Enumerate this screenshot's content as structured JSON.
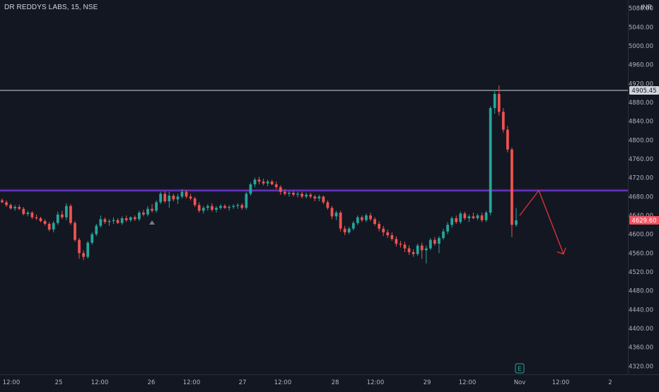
{
  "chart_data": {
    "type": "candlestick",
    "title": "DR REDDYS LABS, 15, NSE",
    "currency": "INR",
    "y_axis": {
      "min": 4300,
      "max": 5100,
      "ticks": [
        5080.0,
        5040.0,
        5000.0,
        4960.0,
        4920.0,
        4880.0,
        4840.0,
        4800.0,
        4760.0,
        4720.0,
        4680.0,
        4640.0,
        4600.0,
        4560.0,
        4520.0,
        4480.0,
        4440.0,
        4400.0,
        4360.0,
        4320.0
      ],
      "tick_labels": [
        "5080.00",
        "5040.00",
        "5000.00",
        "4960.00",
        "4920.00",
        "4880.00",
        "4840.00",
        "4800.00",
        "4760.00",
        "4720.00",
        "4680.00",
        "4640.00",
        "4600.00",
        "4560.00",
        "4520.00",
        "4480.00",
        "4440.00",
        "4400.00",
        "4360.00",
        "4320.00"
      ]
    },
    "x_axis": {
      "tick_labels": [
        "12:00",
        "25",
        "12:00",
        "26",
        "12:00",
        "27",
        "12:00",
        "28",
        "12:00",
        "29",
        "12:00",
        "Nov",
        "12:00",
        "2"
      ]
    },
    "horizontal_lines": [
      {
        "price": 4905.45,
        "color": "#d1d4dc",
        "label": "4905.45"
      },
      {
        "price": 4693,
        "color": "#7b3fe4"
      }
    ],
    "last_price": {
      "value": 4629.6,
      "label": "4629.60",
      "color": "#f7525f"
    },
    "colors": {
      "up": "#26a69a",
      "down": "#ef5350",
      "background": "#131722",
      "arrow": "#e0343a"
    },
    "projection_arrow": [
      [
        4629,
        4640
      ],
      [
        4693,
        4693
      ],
      [
        4694,
        4556
      ]
    ],
    "earnings_marker": {
      "symbol": "E",
      "color": "#26a69a"
    },
    "candles": [
      [
        4672,
        4676,
        4666,
        4668
      ],
      [
        4668,
        4672,
        4658,
        4662
      ],
      [
        4662,
        4665,
        4652,
        4655
      ],
      [
        4655,
        4662,
        4650,
        4658
      ],
      [
        4658,
        4663,
        4651,
        4654
      ],
      [
        4654,
        4658,
        4640,
        4643
      ],
      [
        4643,
        4650,
        4638,
        4646
      ],
      [
        4646,
        4649,
        4632,
        4636
      ],
      [
        4636,
        4642,
        4630,
        4634
      ],
      [
        4634,
        4637,
        4625,
        4628
      ],
      [
        4628,
        4632,
        4618,
        4622
      ],
      [
        4622,
        4626,
        4606,
        4610
      ],
      [
        4610,
        4628,
        4604,
        4624
      ],
      [
        4624,
        4648,
        4620,
        4642
      ],
      [
        4642,
        4650,
        4632,
        4636
      ],
      [
        4636,
        4666,
        4630,
        4660
      ],
      [
        4660,
        4664,
        4620,
        4624
      ],
      [
        4624,
        4628,
        4584,
        4588
      ],
      [
        4588,
        4592,
        4548,
        4560
      ],
      [
        4560,
        4566,
        4545,
        4552
      ],
      [
        4552,
        4586,
        4548,
        4582
      ],
      [
        4582,
        4604,
        4578,
        4600
      ],
      [
        4600,
        4622,
        4596,
        4618
      ],
      [
        4618,
        4640,
        4614,
        4632
      ],
      [
        4632,
        4636,
        4622,
        4626
      ],
      [
        4626,
        4632,
        4618,
        4628
      ],
      [
        4628,
        4636,
        4622,
        4630
      ],
      [
        4630,
        4634,
        4622,
        4624
      ],
      [
        4624,
        4638,
        4620,
        4634
      ],
      [
        4634,
        4640,
        4626,
        4630
      ],
      [
        4630,
        4638,
        4626,
        4636
      ],
      [
        4636,
        4640,
        4628,
        4632
      ],
      [
        4632,
        4650,
        4628,
        4646
      ],
      [
        4646,
        4652,
        4638,
        4642
      ],
      [
        4642,
        4660,
        4638,
        4654
      ],
      [
        4654,
        4664,
        4646,
        4650
      ],
      [
        4650,
        4672,
        4646,
        4668
      ],
      [
        4668,
        4690,
        4664,
        4686
      ],
      [
        4686,
        4692,
        4666,
        4670
      ],
      [
        4670,
        4690,
        4656,
        4682
      ],
      [
        4682,
        4686,
        4670,
        4674
      ],
      [
        4674,
        4686,
        4664,
        4680
      ],
      [
        4680,
        4696,
        4676,
        4690
      ],
      [
        4690,
        4694,
        4676,
        4680
      ],
      [
        4680,
        4686,
        4672,
        4676
      ],
      [
        4676,
        4680,
        4658,
        4662
      ],
      [
        4662,
        4668,
        4646,
        4650
      ],
      [
        4650,
        4660,
        4644,
        4656
      ],
      [
        4656,
        4664,
        4650,
        4660
      ],
      [
        4660,
        4666,
        4648,
        4652
      ],
      [
        4652,
        4660,
        4646,
        4656
      ],
      [
        4656,
        4664,
        4652,
        4660
      ],
      [
        4660,
        4664,
        4654,
        4656
      ],
      [
        4656,
        4662,
        4650,
        4658
      ],
      [
        4658,
        4664,
        4654,
        4660
      ],
      [
        4660,
        4666,
        4654,
        4662
      ],
      [
        4662,
        4666,
        4652,
        4656
      ],
      [
        4656,
        4690,
        4652,
        4686
      ],
      [
        4686,
        4710,
        4682,
        4706
      ],
      [
        4706,
        4720,
        4700,
        4716
      ],
      [
        4716,
        4722,
        4706,
        4712
      ],
      [
        4712,
        4718,
        4704,
        4708
      ],
      [
        4708,
        4716,
        4702,
        4712
      ],
      [
        4712,
        4716,
        4704,
        4706
      ],
      [
        4706,
        4712,
        4696,
        4700
      ],
      [
        4700,
        4704,
        4684,
        4690
      ],
      [
        4690,
        4696,
        4682,
        4686
      ],
      [
        4686,
        4692,
        4680,
        4688
      ],
      [
        4688,
        4692,
        4680,
        4684
      ],
      [
        4684,
        4690,
        4678,
        4686
      ],
      [
        4686,
        4690,
        4676,
        4680
      ],
      [
        4680,
        4688,
        4676,
        4684
      ],
      [
        4684,
        4688,
        4676,
        4680
      ],
      [
        4680,
        4684,
        4670,
        4676
      ],
      [
        4676,
        4684,
        4670,
        4680
      ],
      [
        4680,
        4682,
        4664,
        4668
      ],
      [
        4668,
        4672,
        4652,
        4656
      ],
      [
        4656,
        4660,
        4632,
        4638
      ],
      [
        4638,
        4650,
        4630,
        4646
      ],
      [
        4646,
        4650,
        4606,
        4612
      ],
      [
        4612,
        4618,
        4598,
        4604
      ],
      [
        4604,
        4616,
        4600,
        4612
      ],
      [
        4612,
        4628,
        4608,
        4624
      ],
      [
        4624,
        4640,
        4620,
        4636
      ],
      [
        4636,
        4640,
        4626,
        4630
      ],
      [
        4630,
        4644,
        4626,
        4640
      ],
      [
        4640,
        4646,
        4628,
        4632
      ],
      [
        4632,
        4636,
        4618,
        4622
      ],
      [
        4622,
        4628,
        4606,
        4612
      ],
      [
        4612,
        4618,
        4596,
        4604
      ],
      [
        4604,
        4610,
        4592,
        4598
      ],
      [
        4598,
        4604,
        4586,
        4590
      ],
      [
        4590,
        4596,
        4574,
        4580
      ],
      [
        4580,
        4586,
        4572,
        4578
      ],
      [
        4578,
        4584,
        4562,
        4570
      ],
      [
        4570,
        4576,
        4556,
        4562
      ],
      [
        4562,
        4568,
        4552,
        4558
      ],
      [
        4558,
        4580,
        4554,
        4576
      ],
      [
        4576,
        4582,
        4548,
        4566
      ],
      [
        4566,
        4576,
        4538,
        4570
      ],
      [
        4570,
        4592,
        4566,
        4588
      ],
      [
        4588,
        4594,
        4576,
        4580
      ],
      [
        4580,
        4596,
        4560,
        4592
      ],
      [
        4592,
        4612,
        4588,
        4606
      ],
      [
        4606,
        4626,
        4600,
        4620
      ],
      [
        4620,
        4638,
        4614,
        4634
      ],
      [
        4634,
        4640,
        4622,
        4626
      ],
      [
        4626,
        4648,
        4622,
        4644
      ],
      [
        4644,
        4648,
        4630,
        4634
      ],
      [
        4634,
        4642,
        4626,
        4638
      ],
      [
        4638,
        4646,
        4632,
        4634
      ],
      [
        4634,
        4644,
        4630,
        4640
      ],
      [
        4640,
        4646,
        4626,
        4630
      ],
      [
        4630,
        4650,
        4626,
        4646
      ],
      [
        4646,
        4872,
        4640,
        4868
      ],
      [
        4868,
        4906,
        4856,
        4898
      ],
      [
        4898,
        4916,
        4852,
        4860
      ],
      [
        4860,
        4868,
        4816,
        4822
      ],
      [
        4822,
        4830,
        4774,
        4780
      ],
      [
        4780,
        4784,
        4594,
        4620
      ],
      [
        4620,
        4656,
        4616,
        4629.6
      ]
    ]
  }
}
